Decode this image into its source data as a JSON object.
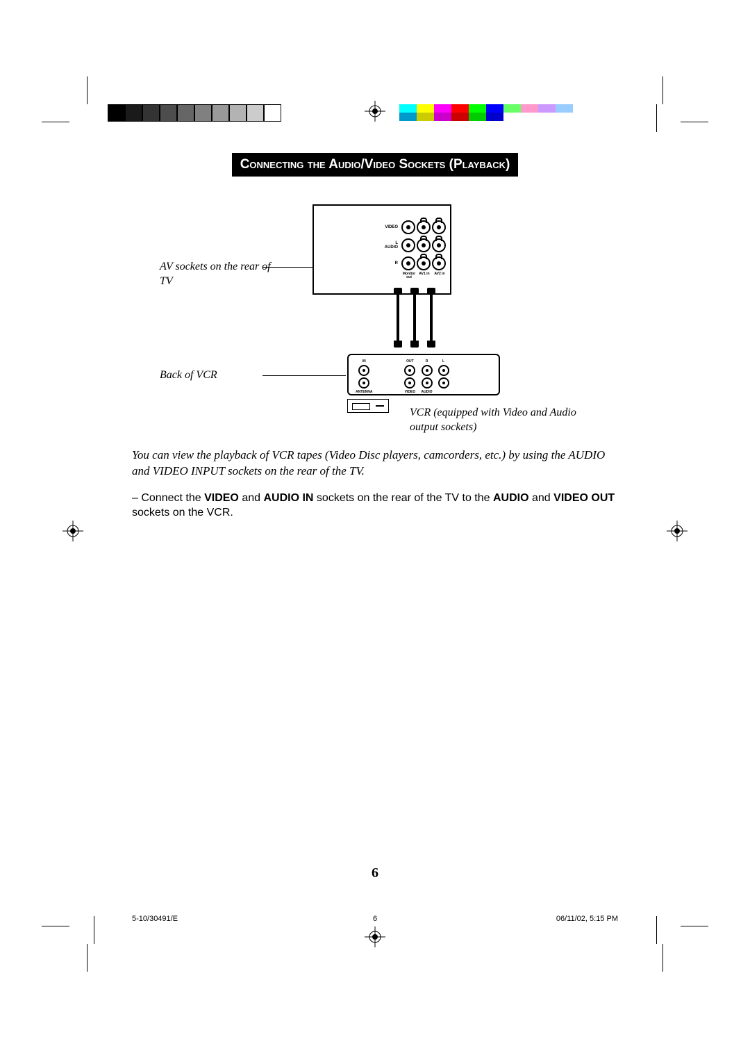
{
  "title": "Connecting the Audio/Video  Sockets (Playback)",
  "captions": {
    "tv": "AV sockets on the rear of TV",
    "vcr": "Back of VCR",
    "note": "VCR (equipped with Video and Audio output sockets)"
  },
  "tv_sockets": {
    "row_video_label": "VIDEO",
    "row_audio_label": "AUDIO",
    "audio_l": "L",
    "audio_r": "R",
    "col1": "Monitor out",
    "col2": "AV1 in",
    "col3": "AV2 in"
  },
  "vcr_sockets": {
    "antenna_in": "IN",
    "antenna_out": "OUT",
    "antenna_label": "ANTENNA",
    "video_label": "VIDEO",
    "audio_label": "AUDIO",
    "audio_r": "R",
    "audio_l": "L",
    "out_label": "OUT",
    "in_label": "IN"
  },
  "body": {
    "intro": "You can view the playback of VCR tapes (Video Disc players, camcorders, etc.) by using the AUDIO and VIDEO INPUT sockets on the rear of the TV.",
    "step_prefix": "–  Connect the ",
    "b1": "VIDEO",
    "t1": " and ",
    "b2": "AUDIO IN",
    "t2": " sockets on the rear of the TV to the ",
    "b3": "AUDIO",
    "t3": " and ",
    "b4": "VIDEO OUT",
    "t4": " sockets on the VCR."
  },
  "page_number": "6",
  "footer": {
    "left": "5-10/30491/E",
    "mid": "6",
    "right": "06/11/02, 5:15 PM"
  },
  "colorbar_left": [
    "#000000",
    "#1a1a1a",
    "#333333",
    "#4d4d4d",
    "#666666",
    "#808080",
    "#999999",
    "#b3b3b3",
    "#cccccc",
    "#ffffff"
  ],
  "colorbar_right": [
    [
      "#00ffff",
      "#0099cc"
    ],
    [
      "#ffff00",
      "#cccc00"
    ],
    [
      "#ff00ff",
      "#cc00cc"
    ],
    [
      "#ff0000",
      "#cc0000"
    ],
    [
      "#00ff00",
      "#00cc00"
    ],
    [
      "#0000ff",
      "#0000cc"
    ],
    [
      "#66ff66",
      "#ffffff"
    ],
    [
      "#ff99cc",
      "#ffffff"
    ],
    [
      "#cc99ff",
      "#ffffff"
    ],
    [
      "#99ccff",
      "#ffffff"
    ]
  ]
}
